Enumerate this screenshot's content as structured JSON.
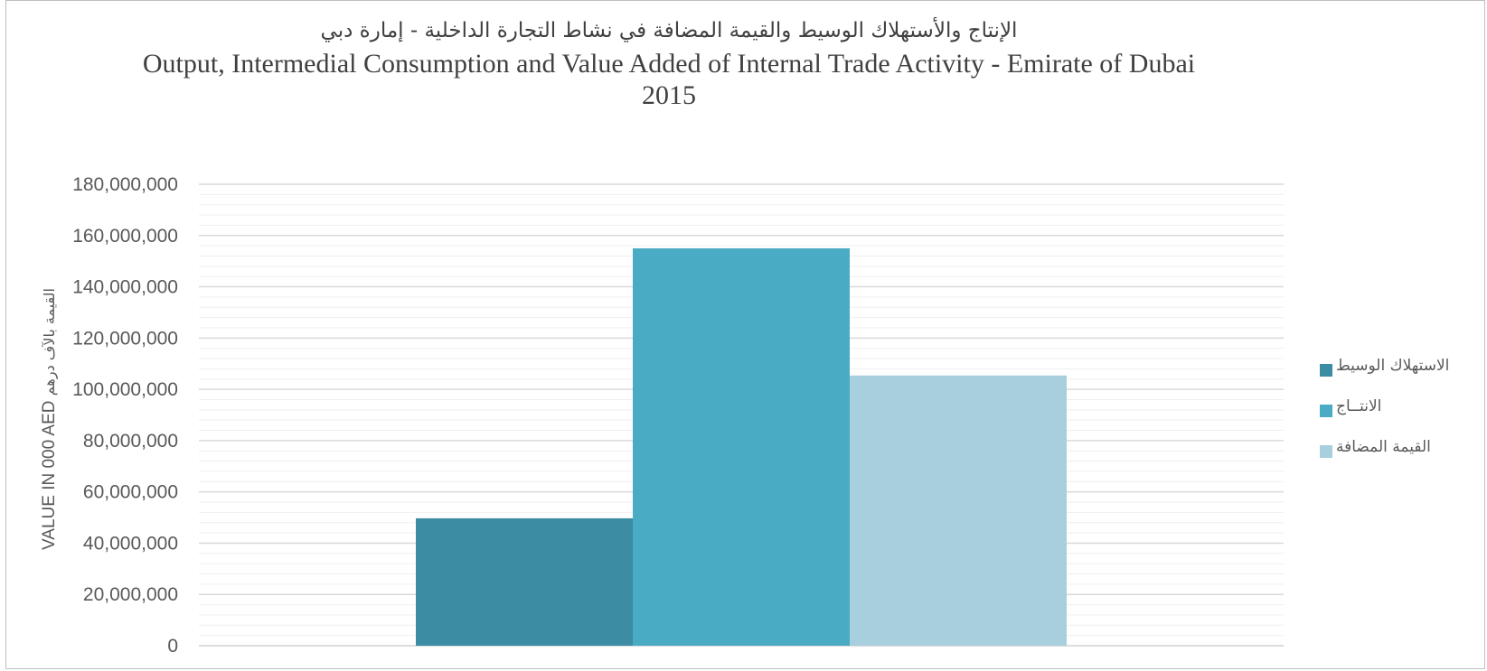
{
  "chart_data": {
    "type": "bar",
    "title_ar": "الإنتاج والأستهلاك الوسيط والقيمة المضافة في نشاط التجارة الداخلية - إمارة دبي",
    "title_en": "Output, Intermedial Consumption and Value Added of Internal Trade Activity - Emirate of Dubai",
    "title_year": "2015",
    "ylabel_en": "VALUE IN 000 AED",
    "ylabel_ar": "القيمة بالآف درهم",
    "xlabel": "",
    "ylim": [
      0,
      180000000
    ],
    "y_ticks": [
      0,
      20000000,
      40000000,
      60000000,
      80000000,
      100000000,
      120000000,
      140000000,
      160000000,
      180000000
    ],
    "y_tick_labels": [
      "0",
      "20,000,000",
      "40,000,000",
      "60,000,000",
      "80,000,000",
      "100,000,000",
      "120,000,000",
      "140,000,000",
      "160,000,000",
      "180,000,000"
    ],
    "minor_grid_step": 4000000,
    "grid": true,
    "legend_position": "right",
    "series": [
      {
        "name": "الاستهلاك الوسيط",
        "values": [
          49700000
        ],
        "color": "#3c8ca4"
      },
      {
        "name": "الانتــاج",
        "values": [
          155000000
        ],
        "color": "#4aabc4"
      },
      {
        "name": "القيمة المضافة",
        "values": [
          105400000
        ],
        "color": "#a8cfdd"
      }
    ]
  }
}
